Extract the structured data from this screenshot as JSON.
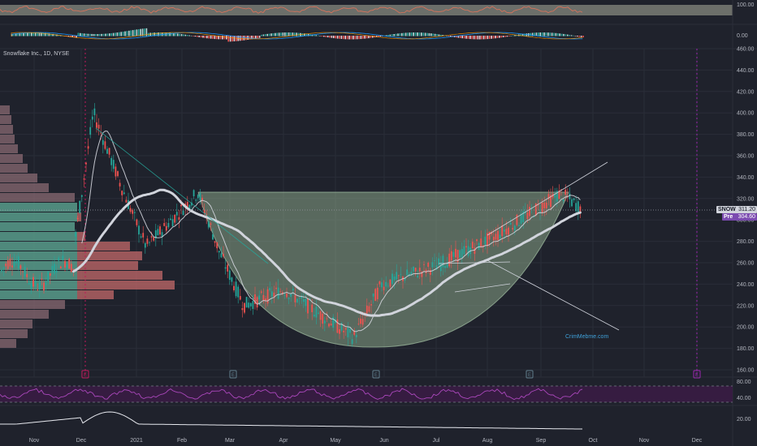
{
  "header": {
    "symbol_title": "Snowflake Inc., 1D, NYSE"
  },
  "watermark": "CrimMebme.com",
  "price_tags": [
    {
      "symbol": "SNOW",
      "value": "311.20"
    },
    {
      "symbol": "Pre",
      "value": "304.60"
    }
  ],
  "colors": {
    "background": "#1f222c",
    "up": "#26a69a",
    "down": "#ef5350",
    "ma": "#d1d4dc",
    "rsi": "#9c27b0",
    "cup_fill": "#7f9c7f",
    "trendline": "#d1d4dc"
  },
  "chart_data": [
    {
      "type": "line",
      "panel": "top oscillator",
      "y_ticks": [
        "100.00"
      ],
      "ylim": [
        0,
        100
      ]
    },
    {
      "type": "area",
      "panel": "histogram oscillator",
      "y_ticks": [
        "0.00"
      ]
    },
    {
      "type": "candlestick",
      "panel": "price",
      "x_ticks": [
        "Nov",
        "Dec",
        "2021",
        "Feb",
        "Mar",
        "Apr",
        "May",
        "Jun",
        "Jul",
        "Aug",
        "Sep",
        "Oct",
        "Nov",
        "Dec"
      ],
      "y_ticks": [
        "460.00",
        "440.00",
        "420.00",
        "400.00",
        "380.00",
        "360.00",
        "340.00",
        "320.00",
        "300.00",
        "280.00",
        "260.00",
        "240.00",
        "220.00",
        "200.00",
        "180.00",
        "160.00"
      ],
      "ylim": [
        160,
        460
      ],
      "earnings_markers": [
        {
          "label": "E",
          "x": "Dec"
        },
        {
          "label": "E",
          "x": "Mar"
        },
        {
          "label": "E",
          "x": "Jun"
        },
        {
          "label": "E",
          "x": "Aug"
        },
        {
          "label": "E",
          "x": "Dec"
        }
      ],
      "price_path": [
        {
          "x": "Dec",
          "y": 280
        },
        {
          "x": "Dec",
          "y": 400
        },
        {
          "x": "Jan",
          "y": 330
        },
        {
          "x": "Jan",
          "y": 275
        },
        {
          "x": "Feb",
          "y": 326
        },
        {
          "x": "Mar",
          "y": 270
        },
        {
          "x": "Mar",
          "y": 220
        },
        {
          "x": "Apr",
          "y": 235
        },
        {
          "x": "May",
          "y": 190
        },
        {
          "x": "Jun",
          "y": 240
        },
        {
          "x": "Jul",
          "y": 258
        },
        {
          "x": "Aug",
          "y": 285
        },
        {
          "x": "Sep",
          "y": 325
        },
        {
          "x": "Sep",
          "y": 311
        }
      ],
      "last_price": 311.2,
      "premarket_price": 304.6
    },
    {
      "type": "line",
      "panel": "RSI",
      "y_ticks": [
        "80.00",
        "40.00"
      ],
      "ylim": [
        20,
        80
      ]
    },
    {
      "type": "line",
      "panel": "bottom indicator",
      "y_ticks": [
        "20.00"
      ]
    }
  ]
}
